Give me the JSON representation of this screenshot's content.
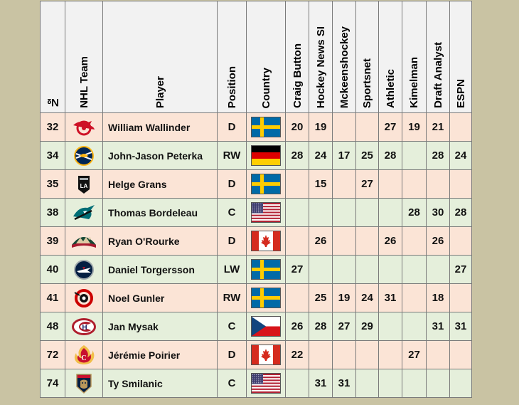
{
  "headers": [
    "№",
    "NHL Team",
    "Player",
    "Position",
    "Country",
    "Craig Button",
    "Hockey News SI",
    "Mckeenshockey",
    "Sportsnet",
    "Athletic",
    "Kimelman",
    "Draft Analyst",
    "ESPN"
  ],
  "rows": [
    {
      "num": "32",
      "team": "red-wings-logo",
      "player": "William Wallinder",
      "pos": "D",
      "flag": "sweden",
      "ranks": [
        "20",
        "19",
        "",
        "",
        "27",
        "19",
        "21",
        ""
      ]
    },
    {
      "num": "34",
      "team": "sabres-logo",
      "player": "John-Jason Peterka",
      "pos": "RW",
      "flag": "germany",
      "ranks": [
        "28",
        "24",
        "17",
        "25",
        "28",
        "",
        "28",
        "24"
      ]
    },
    {
      "num": "35",
      "team": "kings-logo",
      "player": "Helge Grans",
      "pos": "D",
      "flag": "sweden",
      "ranks": [
        "",
        "15",
        "",
        "27",
        "",
        "",
        "",
        ""
      ]
    },
    {
      "num": "38",
      "team": "sharks-logo",
      "player": "Thomas Bordeleau",
      "pos": "C",
      "flag": "usa",
      "ranks": [
        "",
        "",
        "",
        "",
        "",
        "28",
        "30",
        "28"
      ]
    },
    {
      "num": "39",
      "team": "wild-logo",
      "player": "Ryan O'Rourke",
      "pos": "D",
      "flag": "canada",
      "ranks": [
        "",
        "26",
        "",
        "",
        "26",
        "",
        "26",
        ""
      ]
    },
    {
      "num": "40",
      "team": "jets-logo",
      "player": "Daniel Torgersson",
      "pos": "LW",
      "flag": "sweden",
      "ranks": [
        "27",
        "",
        "",
        "",
        "",
        "",
        "",
        "27"
      ]
    },
    {
      "num": "41",
      "team": "hurricanes-logo",
      "player": "Noel Gunler",
      "pos": "RW",
      "flag": "sweden",
      "ranks": [
        "",
        "25",
        "19",
        "24",
        "31",
        "",
        "18",
        ""
      ]
    },
    {
      "num": "48",
      "team": "canadiens-logo",
      "player": "Jan Mysak",
      "pos": "C",
      "flag": "czech",
      "ranks": [
        "26",
        "28",
        "27",
        "29",
        "",
        "",
        "31",
        "31"
      ]
    },
    {
      "num": "72",
      "team": "flames-logo",
      "player": "Jérémie Poirier",
      "pos": "D",
      "flag": "canada",
      "ranks": [
        "22",
        "",
        "",
        "",
        "",
        "27",
        "",
        ""
      ]
    },
    {
      "num": "74",
      "team": "panthers-logo",
      "player": "Ty Smilanic",
      "pos": "C",
      "flag": "usa",
      "ranks": [
        "",
        "31",
        "31",
        "",
        "",
        "",
        "",
        ""
      ]
    }
  ]
}
